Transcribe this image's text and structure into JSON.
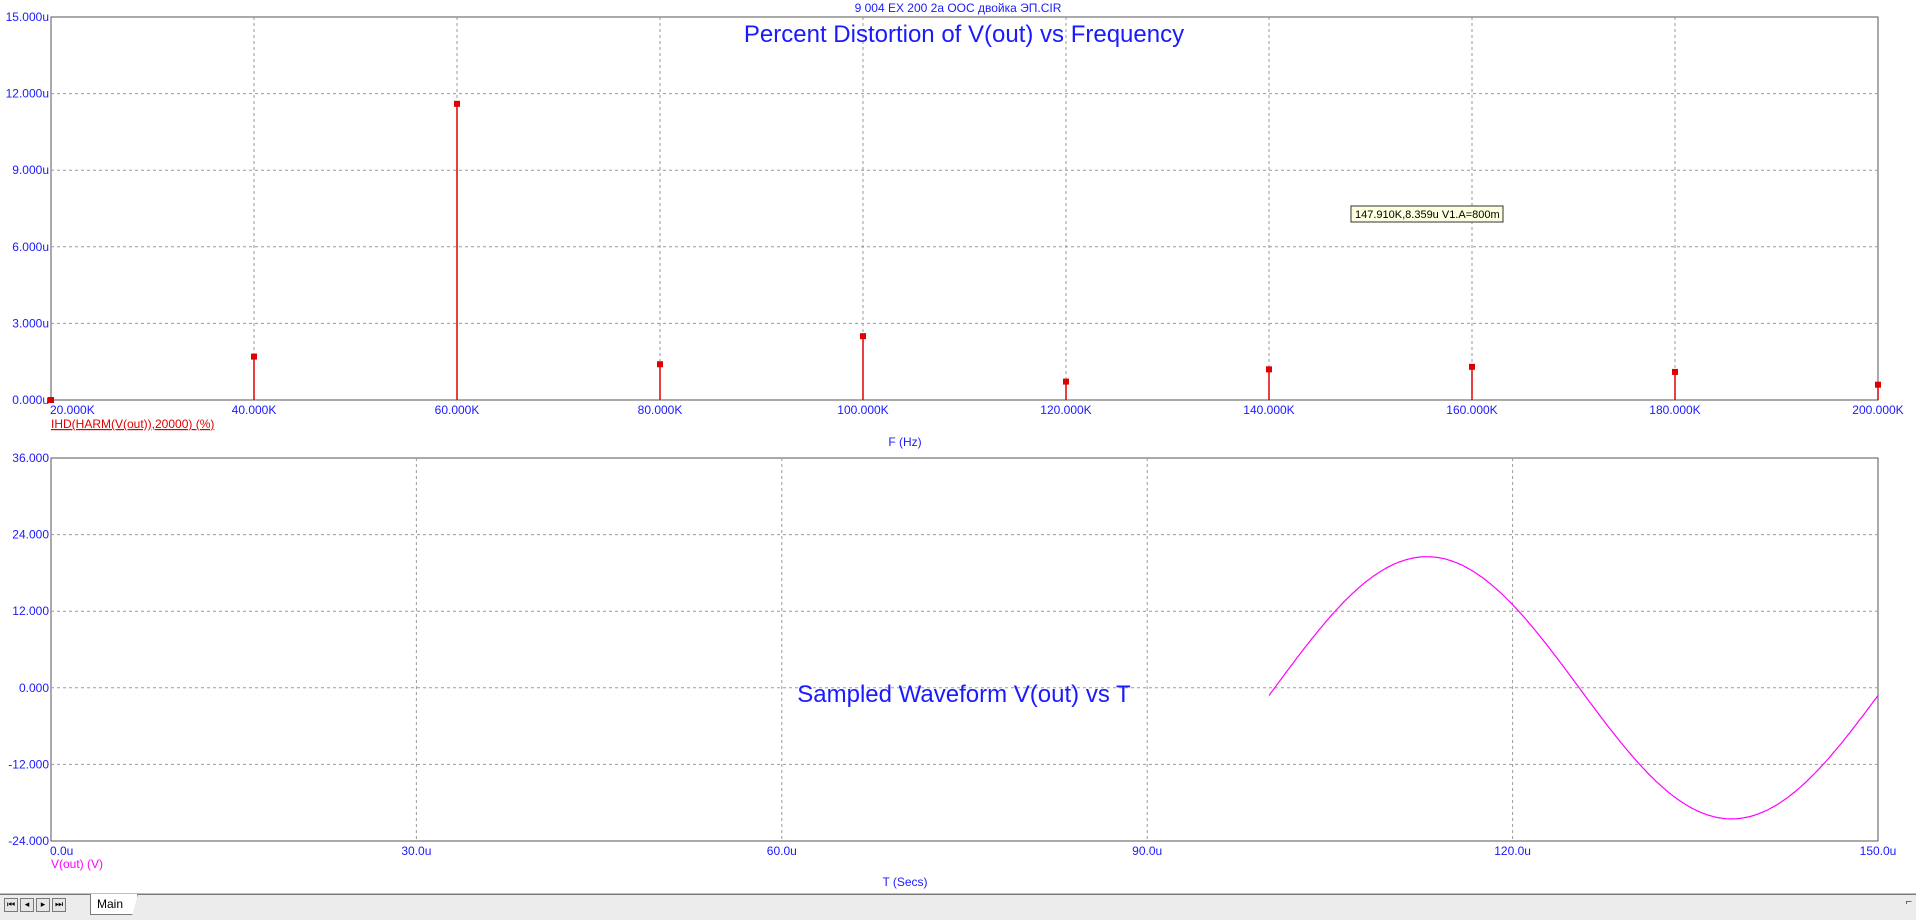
{
  "window": {
    "file_title": "9 004 EX 200 2a ООС двойка ЭП.CIR"
  },
  "colors": {
    "axis_text": "#1a1aff",
    "grid": "#9a9a9a",
    "frame": "#555555",
    "harmonic": "#e00000",
    "waveform": "#ff00ff",
    "tooltip_bg": "#ffffe1"
  },
  "chart_data": [
    {
      "type": "bar",
      "title": "Percent Distortion of V(out) vs Frequency",
      "xlabel": "F (Hz)",
      "trace_label": "IHD(HARM(V(out)),20000) (%)",
      "xlim": [
        20000,
        200000
      ],
      "ylim": [
        0,
        1.5e-05
      ],
      "x_ticks": [
        "20.000K",
        "40.000K",
        "60.000K",
        "80.000K",
        "100.000K",
        "120.000K",
        "140.000K",
        "160.000K",
        "180.000K",
        "200.000K"
      ],
      "y_ticks": [
        "0.000u",
        "3.000u",
        "6.000u",
        "9.000u",
        "12.000u",
        "15.000u"
      ],
      "series": [
        {
          "x": [
            20000,
            40000,
            60000,
            80000,
            100000,
            120000,
            140000,
            160000,
            180000,
            200000
          ],
          "values": [
            0.0,
            1.7e-06,
            1.16e-05,
            1.4e-06,
            2.5e-06,
            7.2e-07,
            1.2e-06,
            1.3e-06,
            1.1e-06,
            6e-07
          ]
        }
      ],
      "grid": true,
      "annotation": "147.910K,8.359u V1.A=800m"
    },
    {
      "type": "line",
      "title": "Sampled Waveform  V(out) vs T",
      "xlabel": "T (Secs)",
      "trace_label": "V(out) (V)",
      "xlim": [
        0,
        0.00015
      ],
      "ylim": [
        -24,
        36
      ],
      "x_ticks": [
        "0.0u",
        "30.0u",
        "60.0u",
        "90.0u",
        "120.0u",
        "150.0u"
      ],
      "y_ticks": [
        "-24.000",
        "-12.000",
        "0.000",
        "12.000",
        "24.000",
        "36.000"
      ],
      "series": [
        {
          "x_start": 0.0001,
          "x_end": 0.00015,
          "amplitude": 20.5,
          "offset": 0,
          "frequency_hz": 20000,
          "phase_note": "starts near zero rising at t=100u"
        }
      ],
      "grid": true
    }
  ],
  "tabs": {
    "main_label": "Main",
    "nav": [
      "⏴⏴",
      "⏴",
      "⏵",
      "⏵⏵"
    ]
  }
}
